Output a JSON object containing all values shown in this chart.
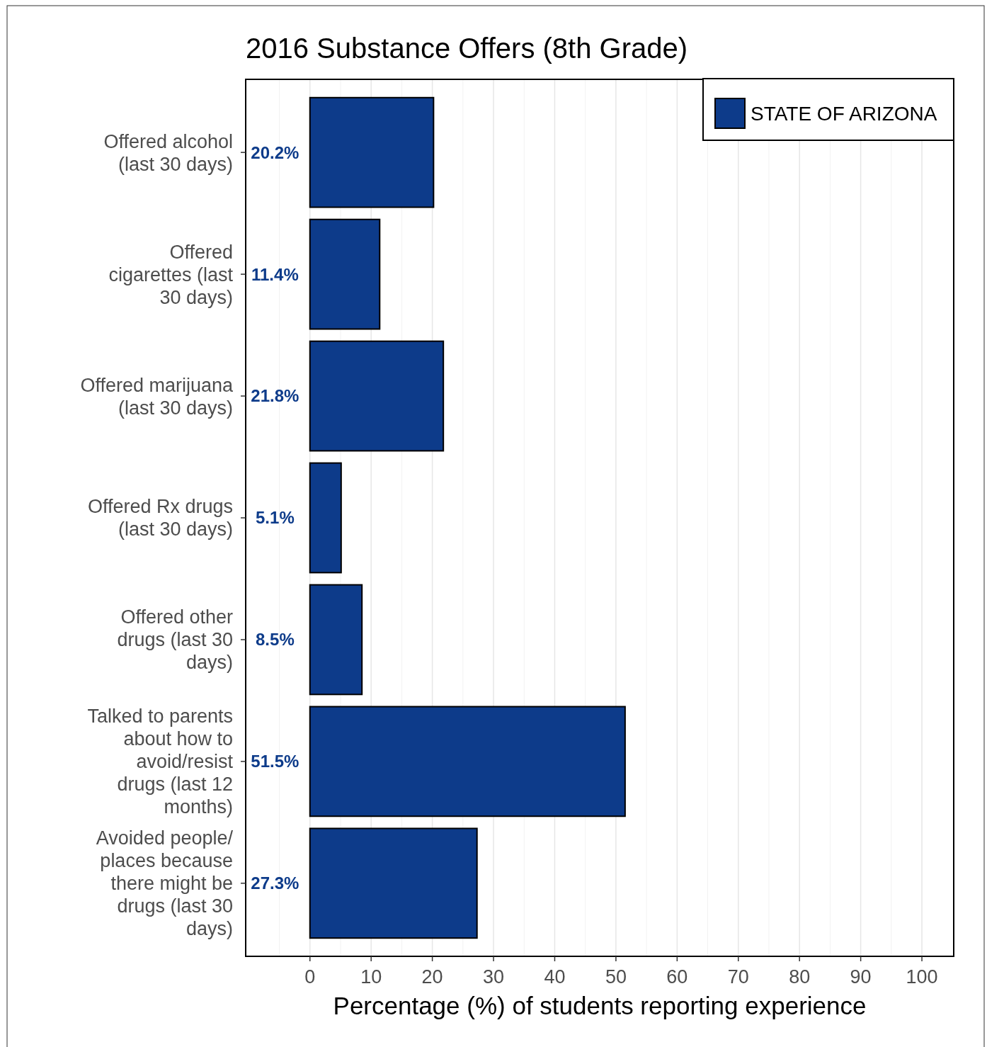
{
  "chart_data": {
    "type": "bar",
    "orientation": "horizontal",
    "title": "2016 Substance Offers (8th Grade)",
    "xlabel": "Percentage (%) of students reporting experience",
    "categories": [
      "Offered alcohol (last 30 days)",
      "Offered cigarettes (last 30 days)",
      "Offered marijuana (last 30 days)",
      "Offered Rx drugs (last 30 days)",
      "Offered other drugs (last 30 days)",
      "Talked to parents about how to avoid/resist drugs (last 12 months)",
      "Avoided people/ places because there might be drugs (last 30 days)"
    ],
    "series": [
      {
        "name": "STATE OF ARIZONA",
        "color": "#0d3b8a",
        "values": [
          20.2,
          11.4,
          21.8,
          5.1,
          8.5,
          51.5,
          27.3
        ],
        "value_labels": [
          "20.2%",
          "11.4%",
          "21.8%",
          "5.1%",
          "8.5%",
          "51.5%",
          "27.3%"
        ]
      }
    ],
    "xlim": [
      -10.5,
      105.2
    ],
    "xticks": [
      0,
      10,
      20,
      30,
      40,
      50,
      60,
      70,
      80,
      90,
      100
    ],
    "grid": "x",
    "legend": "top right"
  }
}
